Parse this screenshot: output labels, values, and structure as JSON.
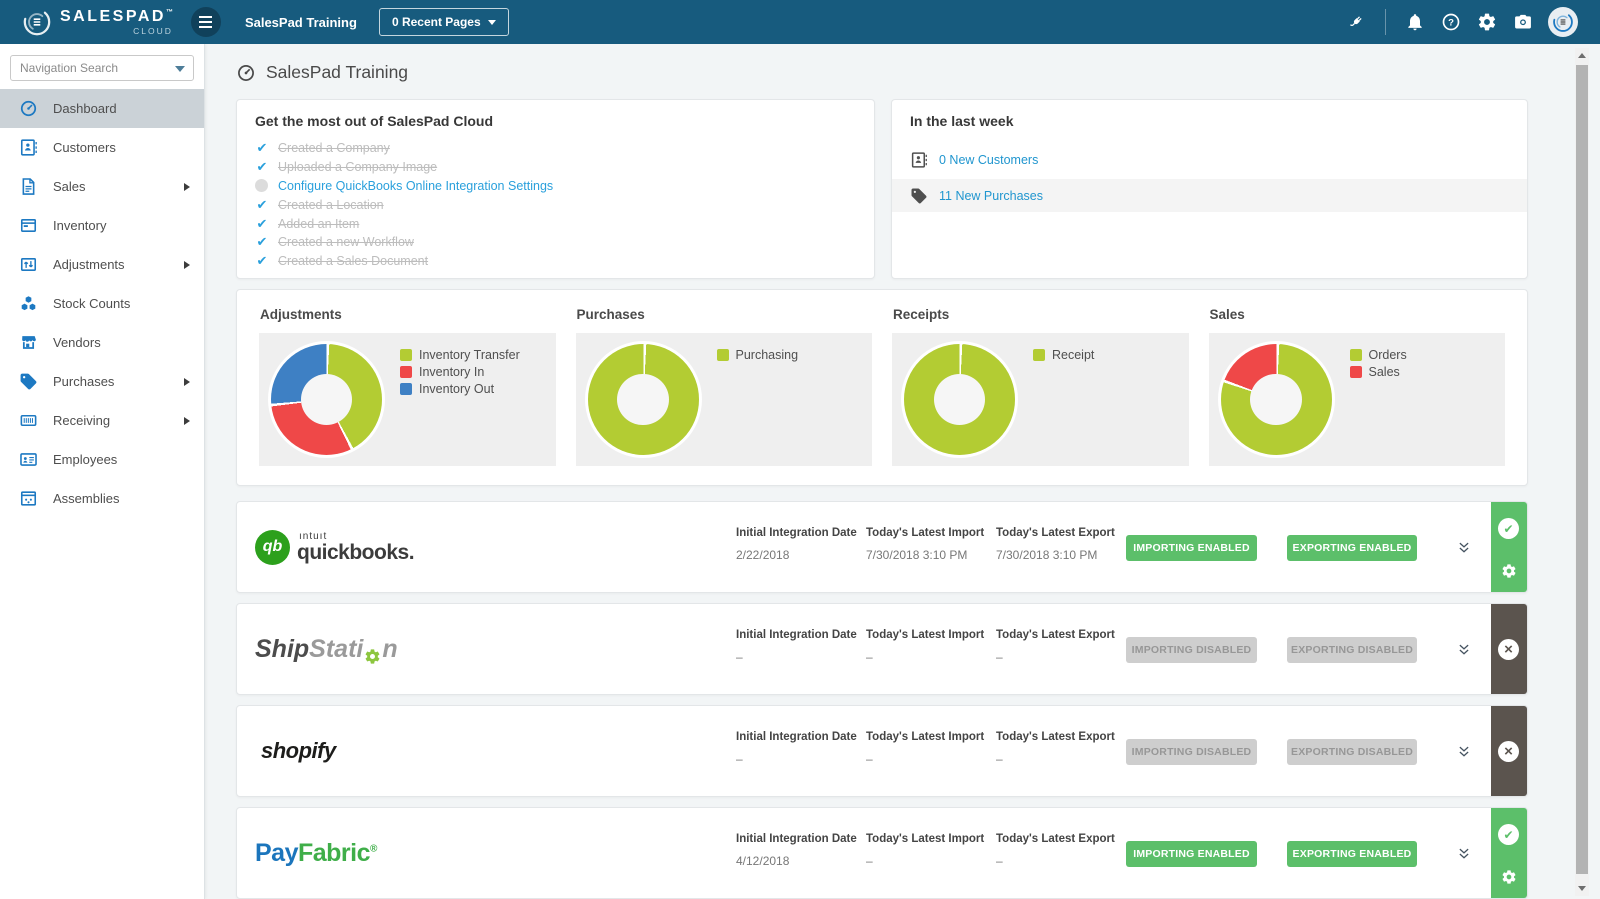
{
  "navbar": {
    "brand": "SALESPAD",
    "brand_tm": "™",
    "brand_sub": "CLOUD",
    "company": "SalesPad Training",
    "recent_pages_label": "0 Recent Pages"
  },
  "sidebar": {
    "search_placeholder": "Navigation Search",
    "items": [
      {
        "label": "Dashboard",
        "icon": "gauge-icon",
        "active": true,
        "expandable": false
      },
      {
        "label": "Customers",
        "icon": "contact-card-icon",
        "active": false,
        "expandable": false
      },
      {
        "label": "Sales",
        "icon": "document-icon",
        "active": false,
        "expandable": true
      },
      {
        "label": "Inventory",
        "icon": "window-icon",
        "active": false,
        "expandable": false
      },
      {
        "label": "Adjustments",
        "icon": "box-arrows-icon",
        "active": false,
        "expandable": true
      },
      {
        "label": "Stock Counts",
        "icon": "cubes-icon",
        "active": false,
        "expandable": false
      },
      {
        "label": "Vendors",
        "icon": "storefront-icon",
        "active": false,
        "expandable": false
      },
      {
        "label": "Purchases",
        "icon": "tag-icon",
        "active": false,
        "expandable": true
      },
      {
        "label": "Receiving",
        "icon": "barcode-icon",
        "active": false,
        "expandable": true
      },
      {
        "label": "Employees",
        "icon": "badge-icon",
        "active": false,
        "expandable": false
      },
      {
        "label": "Assemblies",
        "icon": "assembly-icon",
        "active": false,
        "expandable": false
      }
    ]
  },
  "page": {
    "title": "SalesPad Training"
  },
  "onboarding": {
    "title": "Get the most out of SalesPad Cloud",
    "items": [
      {
        "label": "Created a Company",
        "done": true
      },
      {
        "label": "Uploaded a Company Image",
        "done": true
      },
      {
        "label": "Configure QuickBooks Online Integration Settings",
        "done": false
      },
      {
        "label": "Created a Location",
        "done": true
      },
      {
        "label": "Added an Item",
        "done": true
      },
      {
        "label": "Created a new Workflow",
        "done": true
      },
      {
        "label": "Created a Sales Document",
        "done": true
      }
    ]
  },
  "last_week": {
    "title": "In the last week",
    "items": [
      {
        "label": "0 New Customers",
        "icon": "contact-card-icon",
        "highlighted": false
      },
      {
        "label": "11 New Purchases",
        "icon": "tag-icon",
        "highlighted": true
      }
    ]
  },
  "chart_data": [
    {
      "type": "pie",
      "title": "Adjustments",
      "donut": true,
      "legend_position": "right",
      "series": [
        {
          "name": "Inventory Transfer",
          "value": 42,
          "color": "#b3cc33"
        },
        {
          "name": "Inventory In",
          "value": 31,
          "color": "#ef4848"
        },
        {
          "name": "Inventory Out",
          "value": 27,
          "color": "#3e80c4"
        }
      ]
    },
    {
      "type": "pie",
      "title": "Purchases",
      "donut": true,
      "legend_position": "right",
      "series": [
        {
          "name": "Purchasing",
          "value": 100,
          "color": "#b3cc33"
        }
      ]
    },
    {
      "type": "pie",
      "title": "Receipts",
      "donut": true,
      "legend_position": "right",
      "series": [
        {
          "name": "Receipt",
          "value": 100,
          "color": "#b3cc33"
        }
      ]
    },
    {
      "type": "pie",
      "title": "Sales",
      "donut": true,
      "legend_position": "right",
      "series": [
        {
          "name": "Orders",
          "value": 80,
          "color": "#b3cc33"
        },
        {
          "name": "Sales",
          "value": 20,
          "color": "#ef4848"
        }
      ]
    }
  ],
  "integrations": {
    "col_initial": "Initial Integration Date",
    "col_import": "Today's Latest Import",
    "col_export": "Today's Latest Export",
    "rows": [
      {
        "id": "quickbooks",
        "logo": {
          "type": "quickbooks",
          "badge": "qb",
          "small": "ıntuıt",
          "name": "quickbooks."
        },
        "initial_date": "2/22/2018",
        "latest_import": "7/30/2018 3:10 PM",
        "latest_export": "7/30/2018 3:10 PM",
        "import_status": "IMPORTING ENABLED",
        "export_status": "EXPORTING ENABLED",
        "enabled": true
      },
      {
        "id": "shipstation",
        "logo": {
          "type": "shipstation",
          "part1": "Ship",
          "part2": "Stati",
          "part3": "n"
        },
        "initial_date": "–",
        "latest_import": "–",
        "latest_export": "–",
        "import_status": "IMPORTING DISABLED",
        "export_status": "EXPORTING DISABLED",
        "enabled": false
      },
      {
        "id": "shopify",
        "logo": {
          "type": "shopify",
          "badge": "S",
          "name": "shopify"
        },
        "initial_date": "–",
        "latest_import": "–",
        "latest_export": "–",
        "import_status": "IMPORTING DISABLED",
        "export_status": "EXPORTING DISABLED",
        "enabled": false
      },
      {
        "id": "payfabric",
        "logo": {
          "type": "payfabric",
          "part1": "Pay",
          "part2": "Fabric",
          "reg": "®"
        },
        "initial_date": "4/12/2018",
        "latest_import": "–",
        "latest_export": "–",
        "import_status": "IMPORTING ENABLED",
        "export_status": "EXPORTING ENABLED",
        "enabled": true
      }
    ]
  },
  "colors": {
    "navbar": "#175b7e",
    "sidebar_icon": "#1d79c2",
    "link": "#2aa0dc",
    "chart_green": "#b3cc33",
    "chart_red": "#ef4848",
    "chart_blue": "#3e80c4",
    "enabled_green": "#5cbf6a",
    "disabled_gray": "#cecece",
    "strip_dark": "#5b544e"
  }
}
